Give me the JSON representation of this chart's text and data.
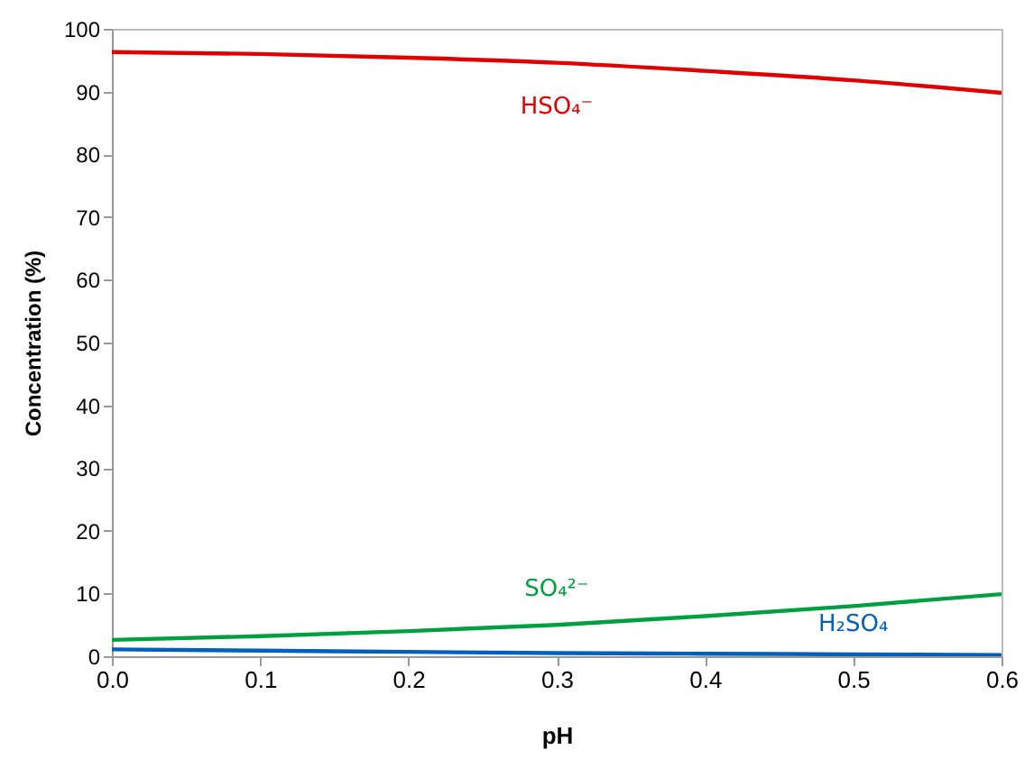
{
  "chart_data": {
    "type": "line",
    "xlabel": "pH",
    "ylabel": "Concentration (%)",
    "x": [
      0,
      0.1,
      0.2,
      0.3,
      0.4,
      0.5,
      0.6
    ],
    "series": [
      {
        "name": "HSO₄⁻",
        "color": "#e00000",
        "values": [
          96.3,
          96.0,
          95.4,
          94.6,
          93.3,
          91.8,
          89.8
        ]
      },
      {
        "name": "SO₄²⁻",
        "color": "#00a040",
        "values": [
          2.6,
          3.2,
          4.0,
          5.0,
          6.4,
          8.0,
          9.9
        ]
      },
      {
        "name": "H₂SO₄",
        "color": "#0060c0",
        "values": [
          1.1,
          0.9,
          0.7,
          0.5,
          0.4,
          0.3,
          0.2
        ]
      }
    ],
    "xlim": [
      0,
      0.6
    ],
    "ylim": [
      0,
      100
    ],
    "xticks": [
      {
        "value": 0,
        "label": "0.0"
      },
      0.1,
      0.2,
      0.3,
      0.4,
      0.5,
      0.6
    ],
    "yticks": [
      0,
      10,
      20,
      30,
      40,
      50,
      60,
      70,
      80,
      90,
      100
    ],
    "grid": false,
    "line_style": "solid",
    "marker": "none"
  }
}
